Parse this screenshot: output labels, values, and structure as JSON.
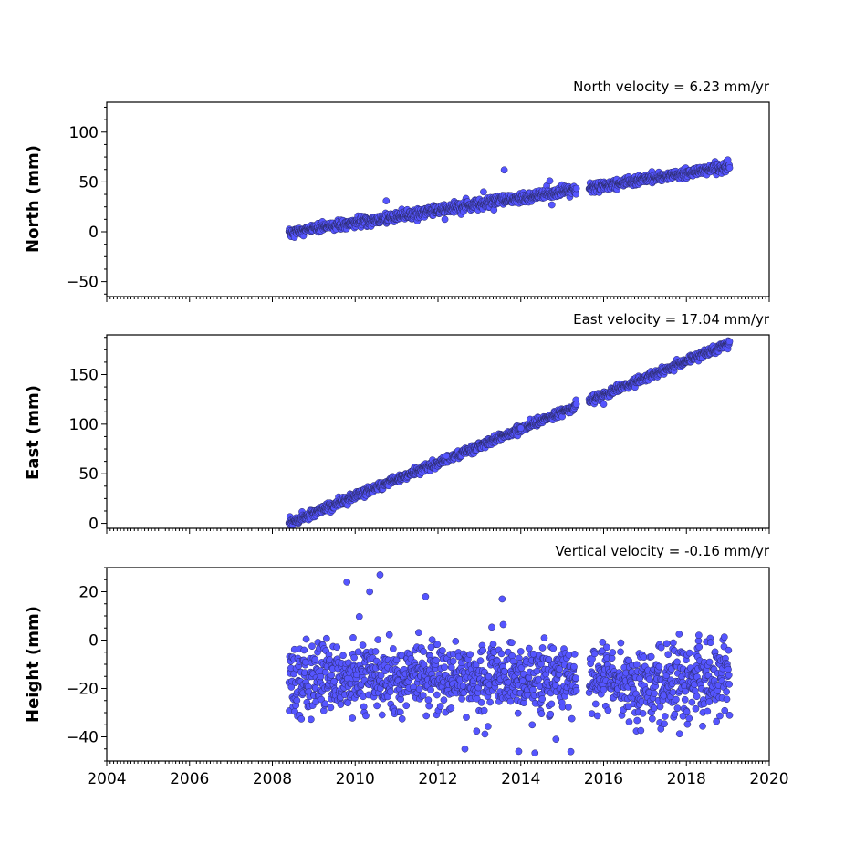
{
  "chart_data": [
    {
      "type": "scatter",
      "title": "North velocity = 6.23 mm/yr",
      "ylabel": "North (mm)",
      "xlim": [
        2004,
        2020
      ],
      "ylim": [
        -65,
        130
      ],
      "yticks": [
        -50,
        0,
        50,
        100
      ],
      "yticklabels": [
        "−50",
        "0",
        "50",
        "100"
      ],
      "xticks_labeled": false,
      "series": [
        {
          "color": "#5555ff",
          "trend": {
            "x0": 2008.4,
            "y0": -1,
            "rate": 6.23
          },
          "x_range": [
            2008.4,
            2019.05
          ],
          "gap": [
            2015.35,
            2015.65
          ],
          "scatter_sd": 2.5,
          "outliers": [
            [
              2013.6,
              62
            ],
            [
              2010.75,
              31
            ],
            [
              2014.7,
              51
            ],
            [
              2014.75,
              27
            ],
            [
              2013.1,
              40
            ]
          ]
        }
      ]
    },
    {
      "type": "scatter",
      "title": "East velocity = 17.04 mm/yr",
      "ylabel": "East (mm)",
      "xlim": [
        2004,
        2020
      ],
      "ylim": [
        -5,
        190
      ],
      "yticks": [
        0,
        50,
        100,
        150
      ],
      "yticklabels": [
        "0",
        "50",
        "100",
        "150"
      ],
      "xticks_labeled": false,
      "series": [
        {
          "color": "#5555ff",
          "trend": {
            "x0": 2008.4,
            "y0": 0,
            "rate": 17.04
          },
          "x_range": [
            2008.4,
            2019.05
          ],
          "gap": [
            2015.35,
            2015.65
          ],
          "scatter_sd": 2.0,
          "outliers": [
            [
              2016.0,
              120
            ],
            [
              2014.0,
              96
            ],
            [
              2012.2,
              68
            ]
          ]
        }
      ]
    },
    {
      "type": "scatter",
      "title": "Vertical velocity = -0.16 mm/yr",
      "ylabel": "Height (mm)",
      "xlim": [
        2004,
        2020
      ],
      "ylim": [
        -50,
        30
      ],
      "yticks": [
        -40,
        -20,
        0,
        20
      ],
      "yticklabels": [
        "−40",
        "−20",
        "0",
        "20"
      ],
      "xticks_labeled": true,
      "xticks": [
        2004,
        2006,
        2008,
        2010,
        2012,
        2014,
        2016,
        2018,
        2020
      ],
      "xticklabels": [
        "2004",
        "2006",
        "2008",
        "2010",
        "2012",
        "2014",
        "2016",
        "2018",
        "2020"
      ],
      "series": [
        {
          "color": "#5555ff",
          "trend": {
            "x0": 2008.4,
            "y0": -15,
            "rate": -0.16
          },
          "x_range": [
            2008.4,
            2019.05
          ],
          "gap": [
            2015.35,
            2015.65
          ],
          "scatter_sd": 7.5,
          "outliers": [
            [
              2009.8,
              24
            ],
            [
              2010.6,
              27
            ],
            [
              2010.35,
              20
            ],
            [
              2011.7,
              18
            ],
            [
              2013.55,
              17
            ],
            [
              2013.95,
              -46
            ],
            [
              2012.65,
              -45
            ],
            [
              2014.85,
              -41
            ]
          ]
        }
      ]
    }
  ]
}
